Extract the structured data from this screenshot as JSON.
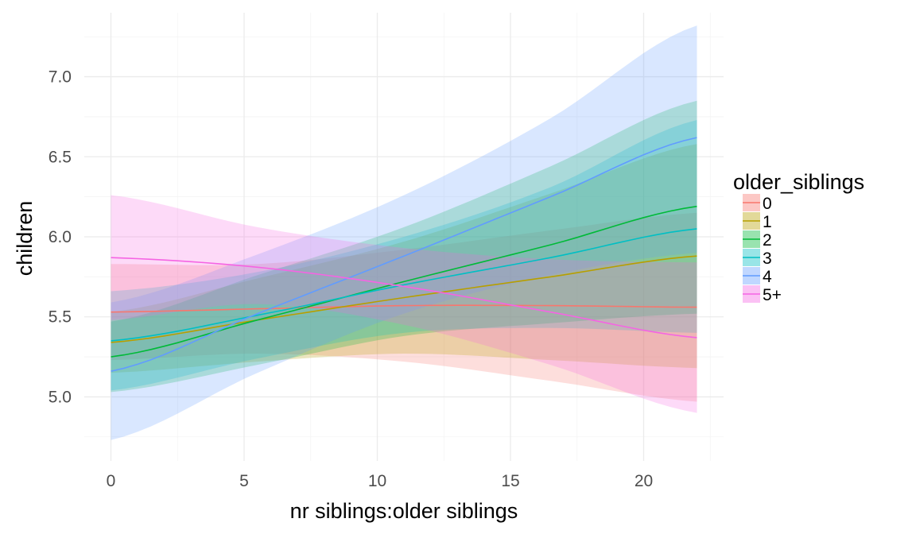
{
  "chart_data": {
    "type": "line",
    "xlabel": "nr siblings:older siblings",
    "ylabel": "children",
    "xlim": [
      -1,
      23
    ],
    "ylim": [
      4.6,
      7.4
    ],
    "xticks": [
      0,
      5,
      10,
      15,
      20
    ],
    "xtick_labels": [
      "0",
      "5",
      "10",
      "15",
      "20"
    ],
    "yticks": [
      5.0,
      5.5,
      6.0,
      6.5,
      7.0
    ],
    "ytick_labels": [
      "5.0",
      "5.5",
      "6.0",
      "6.5",
      "7.0"
    ],
    "grid": true,
    "legend": {
      "title": "older_siblings",
      "position": "right"
    },
    "x": [
      0,
      5.5,
      11,
      16.5,
      22
    ],
    "series": [
      {
        "name": "0",
        "color": "#F8766D",
        "fit": [
          5.53,
          5.55,
          5.57,
          5.57,
          5.56
        ],
        "lower": [
          5.23,
          5.27,
          5.22,
          5.1,
          4.97
        ],
        "upper": [
          5.83,
          5.83,
          5.92,
          6.04,
          6.15
        ]
      },
      {
        "name": "1",
        "color": "#B79F00",
        "fit": [
          5.34,
          5.48,
          5.62,
          5.75,
          5.88
        ],
        "lower": [
          5.15,
          5.22,
          5.27,
          5.23,
          5.18
        ],
        "upper": [
          5.53,
          5.74,
          5.97,
          6.27,
          6.58
        ]
      },
      {
        "name": "2",
        "color": "#00BA38",
        "fit": [
          5.25,
          5.48,
          5.72,
          5.95,
          6.19
        ],
        "lower": [
          5.03,
          5.2,
          5.38,
          5.46,
          5.52
        ],
        "upper": [
          5.47,
          5.76,
          6.06,
          6.44,
          6.85
        ]
      },
      {
        "name": "3",
        "color": "#00BFC4",
        "fit": [
          5.35,
          5.51,
          5.7,
          5.87,
          6.05
        ],
        "lower": [
          5.04,
          5.24,
          5.4,
          5.43,
          5.4
        ],
        "upper": [
          5.66,
          5.78,
          6.0,
          6.31,
          6.73
        ]
      },
      {
        "name": "4",
        "color": "#619CFF",
        "fit": [
          5.16,
          5.52,
          5.88,
          6.25,
          6.62
        ],
        "lower": [
          4.73,
          5.15,
          5.52,
          5.76,
          5.9
        ],
        "upper": [
          5.59,
          5.89,
          6.26,
          6.74,
          7.32
        ]
      },
      {
        "name": "5+",
        "color": "#F564E3",
        "fit": [
          5.87,
          5.81,
          5.69,
          5.53,
          5.37
        ],
        "lower": [
          5.48,
          5.58,
          5.45,
          5.2,
          4.9
        ],
        "upper": [
          6.26,
          6.06,
          5.93,
          5.86,
          5.84
        ]
      }
    ]
  }
}
